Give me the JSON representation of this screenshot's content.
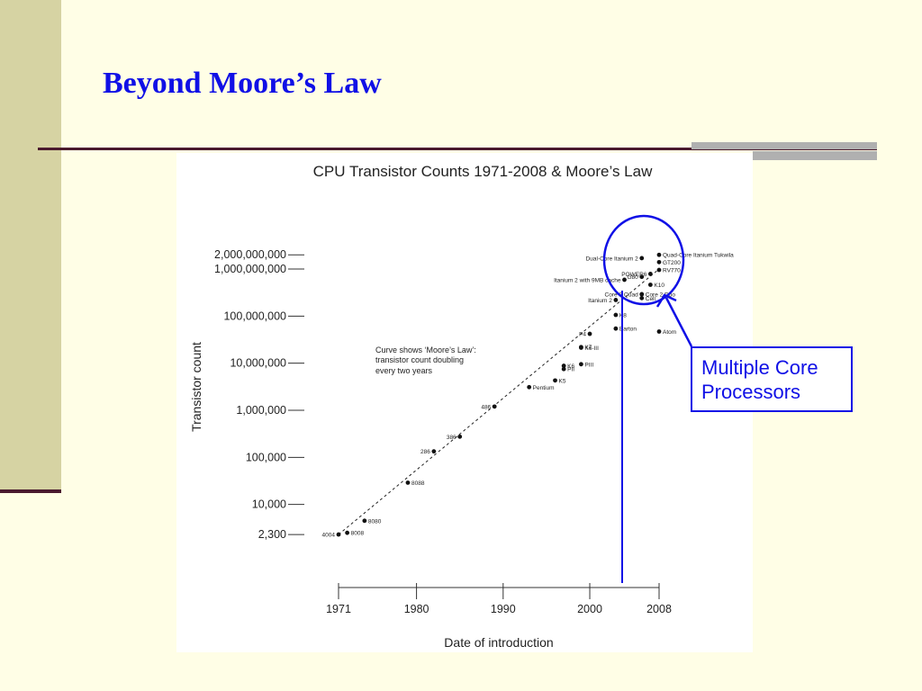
{
  "slide": {
    "title": "Beyond Moore’s Law",
    "callout": [
      "Multiple Core",
      "Processors"
    ],
    "accent_color": "#1010e6",
    "background_color": "#fffee6",
    "sidebar_color": "#d6d3a3"
  },
  "chart_data": {
    "type": "scatter",
    "title": "CPU Transistor Counts 1971-2008 & Moore’s Law",
    "xlabel": "Date of introduction",
    "ylabel": "Transistor count",
    "y_scale": "log",
    "xlim": [
      1971,
      2008
    ],
    "x_ticks": [
      1971,
      1980,
      1990,
      2000,
      2008
    ],
    "y_ticks": [
      {
        "value": 2000000000,
        "label": "2,000,000,000"
      },
      {
        "value": 1000000000,
        "label": "1,000,000,000"
      },
      {
        "value": 100000000,
        "label": "100,000,000"
      },
      {
        "value": 10000000,
        "label": "10,000,000"
      },
      {
        "value": 1000000,
        "label": "1,000,000"
      },
      {
        "value": 100000,
        "label": "100,000"
      },
      {
        "value": 10000,
        "label": "10,000"
      },
      {
        "value": 2300,
        "label": "2,300"
      }
    ],
    "annotation": [
      "Curve shows ‘Moore’s Law’:",
      "transistor count doubling",
      "every two years"
    ],
    "trend": {
      "type": "dashed",
      "doubling_years": 2,
      "from": [
        1971,
        2300
      ],
      "to": [
        2008,
        1000000000
      ]
    },
    "marker_year": 2004,
    "points": [
      {
        "label": "4004",
        "x": 1971,
        "y": 2300,
        "side": "left"
      },
      {
        "label": "8008",
        "x": 1972,
        "y": 2500,
        "side": "right"
      },
      {
        "label": "8080",
        "x": 1974,
        "y": 4500,
        "side": "right"
      },
      {
        "label": "8088",
        "x": 1979,
        "y": 29000,
        "side": "right"
      },
      {
        "label": "286",
        "x": 1982,
        "y": 134000,
        "side": "left"
      },
      {
        "label": "386",
        "x": 1985,
        "y": 275000,
        "side": "left"
      },
      {
        "label": "486",
        "x": 1989,
        "y": 1200000,
        "side": "left"
      },
      {
        "label": "Pentium",
        "x": 1993,
        "y": 3100000,
        "side": "right"
      },
      {
        "label": "K5",
        "x": 1996,
        "y": 4300000,
        "side": "right"
      },
      {
        "label": "PII",
        "x": 1997,
        "y": 7500000,
        "side": "right"
      },
      {
        "label": "K6",
        "x": 1997,
        "y": 8800000,
        "side": "right"
      },
      {
        "label": "PIII",
        "x": 1999,
        "y": 9500000,
        "side": "right"
      },
      {
        "label": "K6-III",
        "x": 1999,
        "y": 21300000,
        "side": "right"
      },
      {
        "label": "K7",
        "x": 1999,
        "y": 22000000,
        "side": "right"
      },
      {
        "label": "P4",
        "x": 2000,
        "y": 42000000,
        "side": "left"
      },
      {
        "label": "Barton",
        "x": 2003,
        "y": 54300000,
        "side": "right"
      },
      {
        "label": "K8",
        "x": 2003,
        "y": 105900000,
        "side": "right"
      },
      {
        "label": "Itanium 2",
        "x": 2003,
        "y": 220000000,
        "side": "left"
      },
      {
        "label": "Itanium 2 with 9MB cache",
        "x": 2004,
        "y": 592000000,
        "side": "left"
      },
      {
        "label": "Core 2 Quad",
        "x": 2006,
        "y": 291000000,
        "side": "left"
      },
      {
        "label": "Core 2 Duo",
        "x": 2006,
        "y": 291000000,
        "side": "right"
      },
      {
        "label": "Cell",
        "x": 2006,
        "y": 241000000,
        "side": "right"
      },
      {
        "label": "G80",
        "x": 2006,
        "y": 681000000,
        "side": "left"
      },
      {
        "label": "POWER6",
        "x": 2007,
        "y": 789000000,
        "side": "left"
      },
      {
        "label": "K10",
        "x": 2007,
        "y": 463000000,
        "side": "right"
      },
      {
        "label": "Dual-Core Itanium 2",
        "x": 2006,
        "y": 1700000000,
        "side": "left"
      },
      {
        "label": "RV770",
        "x": 2008,
        "y": 956000000,
        "side": "right"
      },
      {
        "label": "GT200",
        "x": 2008,
        "y": 1400000000,
        "side": "right"
      },
      {
        "label": "Quad-Core Itanium Tukwila",
        "x": 2008,
        "y": 2000000000,
        "side": "right"
      },
      {
        "label": "Atom",
        "x": 2008,
        "y": 47000000,
        "side": "right"
      }
    ]
  }
}
